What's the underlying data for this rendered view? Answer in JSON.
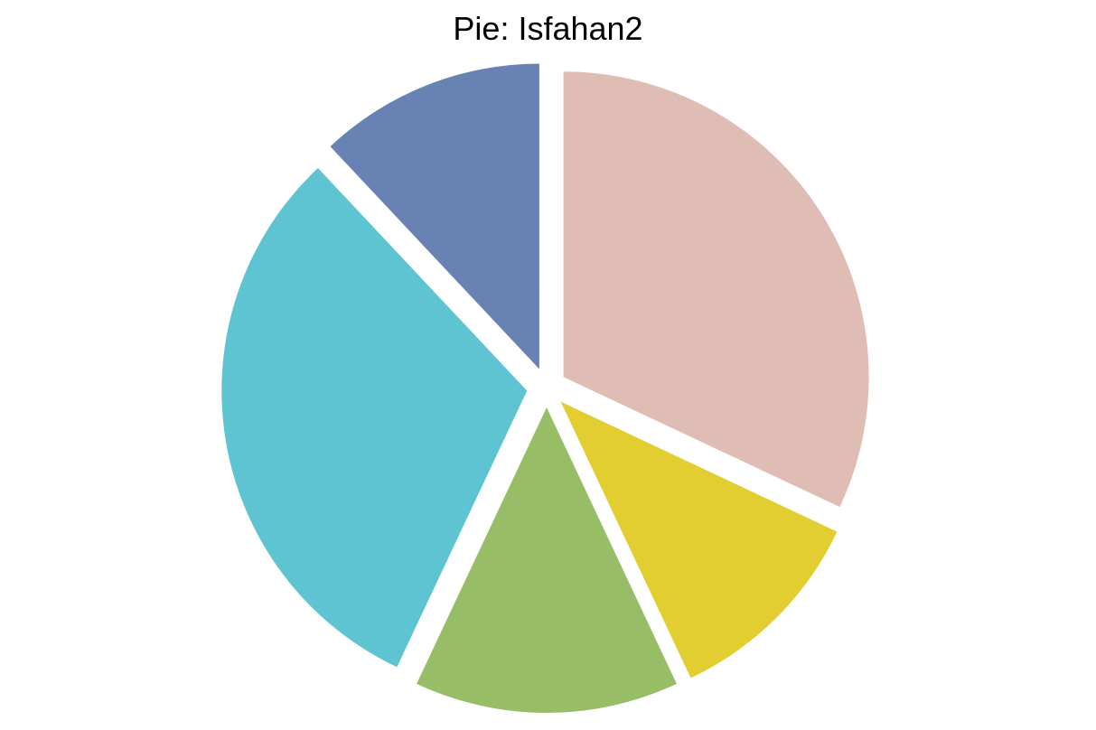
{
  "chart_data": {
    "type": "pie",
    "title": "Pie: Isfahan2",
    "start_angle_deg": 90,
    "direction": "clockwise",
    "exploded": true,
    "slices": [
      {
        "value": 32,
        "color": "#DFBDB5"
      },
      {
        "value": 11,
        "color": "#E2CE30"
      },
      {
        "value": 14,
        "color": "#97BE67"
      },
      {
        "value": 31,
        "color": "#5EC4D1"
      },
      {
        "value": 12,
        "color": "#6882B3"
      }
    ]
  }
}
